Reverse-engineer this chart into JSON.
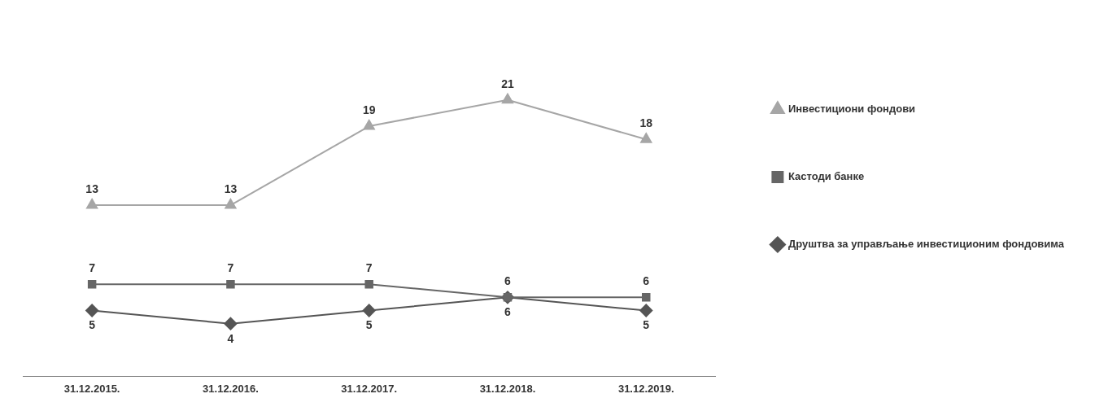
{
  "chart_data": {
    "type": "line",
    "categories": [
      "31.12.2015.",
      "31.12.2016.",
      "31.12.2017.",
      "31.12.2018.",
      "31.12.2019."
    ],
    "series": [
      {
        "name": "Инвестициони фондови",
        "color": "#a6a6a6",
        "marker": "triangle",
        "values": [
          13,
          13,
          19,
          21,
          18
        ]
      },
      {
        "name": "Кастоди банке",
        "color": "#666666",
        "marker": "square",
        "values": [
          7,
          7,
          7,
          6,
          6
        ]
      },
      {
        "name": "Друштва за управљање инвестиционим фондовима",
        "color": "#555555",
        "marker": "diamond",
        "values": [
          5,
          4,
          5,
          6,
          5
        ]
      }
    ],
    "data_labels": true,
    "legend": "right",
    "grid": false,
    "line_style": "solid"
  }
}
